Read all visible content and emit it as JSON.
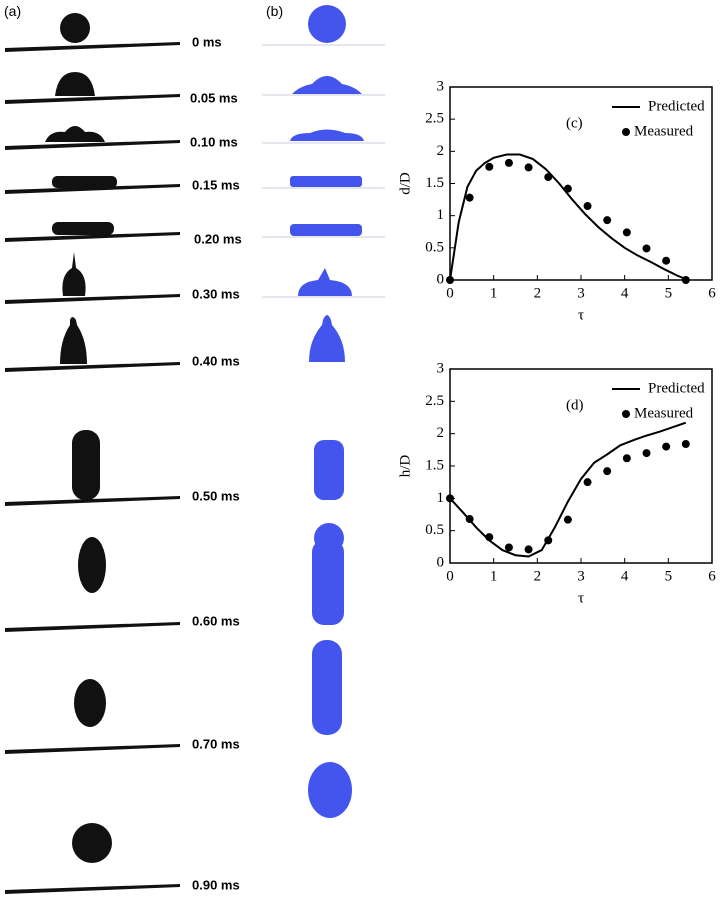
{
  "panels": {
    "a": "(a)",
    "b": "(b)",
    "times": [
      "0 ms",
      "0.05 ms",
      "0.10 ms",
      "0.15 ms",
      "0.20 ms",
      "0.30 ms",
      "0.40 ms",
      "0.50 ms",
      "0.60 ms",
      "0.70 ms",
      "0.90 ms"
    ]
  },
  "chart_data": [
    {
      "type": "line",
      "title": "(c)",
      "xlabel": "τ",
      "ylabel": "d/D",
      "xlim": [
        0,
        6
      ],
      "ylim": [
        0,
        3
      ],
      "xticks": [
        0,
        1,
        2,
        3,
        4,
        5,
        6
      ],
      "yticks": [
        0,
        0.5,
        1,
        1.5,
        2,
        2.5,
        3
      ],
      "legend": "upper right",
      "series": [
        {
          "name": "Predicted",
          "kind": "line",
          "color": "#000000",
          "x": [
            0,
            0.2,
            0.4,
            0.6,
            0.8,
            1.0,
            1.3,
            1.6,
            1.9,
            2.2,
            2.5,
            2.8,
            3.1,
            3.4,
            3.7,
            4.0,
            4.3,
            4.6,
            4.9,
            5.2,
            5.45
          ],
          "values": [
            0,
            0.9,
            1.45,
            1.7,
            1.82,
            1.9,
            1.95,
            1.95,
            1.88,
            1.72,
            1.5,
            1.25,
            1.02,
            0.82,
            0.65,
            0.5,
            0.38,
            0.28,
            0.17,
            0.07,
            0
          ]
        },
        {
          "name": "Measured",
          "kind": "scatter",
          "color": "#000000",
          "x": [
            0,
            0.45,
            0.9,
            1.35,
            1.8,
            2.25,
            2.7,
            3.15,
            3.6,
            4.05,
            4.5,
            4.95,
            5.4
          ],
          "values": [
            0,
            1.28,
            1.76,
            1.82,
            1.75,
            1.6,
            1.42,
            1.15,
            0.93,
            0.74,
            0.49,
            0.3,
            0
          ]
        }
      ]
    },
    {
      "type": "line",
      "title": "(d)",
      "xlabel": "τ",
      "ylabel": "h/D",
      "xlim": [
        0,
        6
      ],
      "ylim": [
        0,
        3
      ],
      "xticks": [
        0,
        1,
        2,
        3,
        4,
        5,
        6
      ],
      "yticks": [
        0,
        0.5,
        1,
        1.5,
        2,
        2.5,
        3
      ],
      "legend": "upper right",
      "series": [
        {
          "name": "Predicted",
          "kind": "line",
          "color": "#000000",
          "x": [
            0,
            0.3,
            0.6,
            0.9,
            1.2,
            1.5,
            1.8,
            2.1,
            2.4,
            2.7,
            3.0,
            3.3,
            3.6,
            3.9,
            4.2,
            4.5,
            4.8,
            5.1,
            5.4
          ],
          "values": [
            1,
            0.78,
            0.55,
            0.35,
            0.2,
            0.12,
            0.1,
            0.2,
            0.55,
            0.95,
            1.3,
            1.55,
            1.68,
            1.82,
            1.9,
            1.97,
            2.03,
            2.1,
            2.17
          ]
        },
        {
          "name": "Measured",
          "kind": "scatter",
          "color": "#000000",
          "x": [
            0,
            0.45,
            0.9,
            1.35,
            1.8,
            2.25,
            2.7,
            3.15,
            3.6,
            4.05,
            4.5,
            4.95,
            5.4
          ],
          "values": [
            1.0,
            0.68,
            0.4,
            0.24,
            0.21,
            0.35,
            0.67,
            1.25,
            1.42,
            1.62,
            1.7,
            1.8,
            1.84
          ]
        }
      ]
    }
  ]
}
